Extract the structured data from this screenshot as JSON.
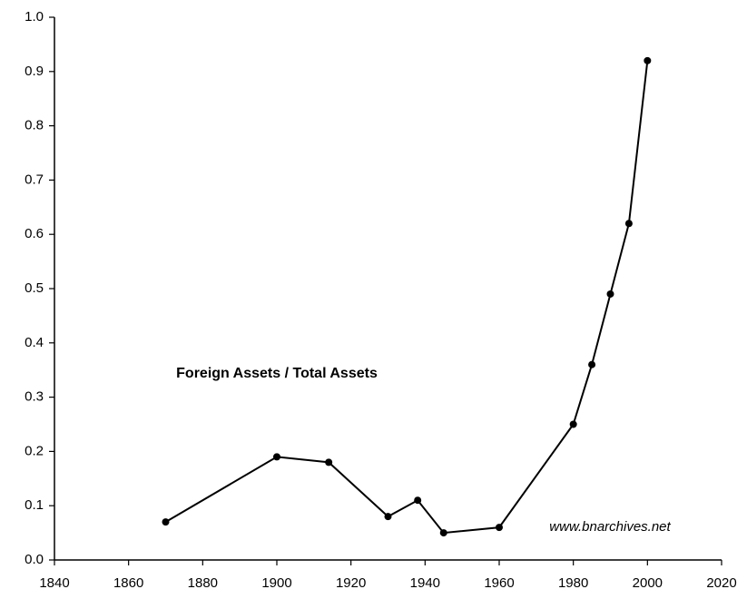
{
  "chart_data": {
    "type": "line",
    "x": [
      1870,
      1900,
      1914,
      1930,
      1938,
      1945,
      1960,
      1980,
      1985,
      1990,
      1995,
      2000
    ],
    "series": [
      {
        "color": "#000000",
        "values": [
          0.07,
          0.19,
          0.18,
          0.08,
          0.11,
          0.05,
          0.06,
          0.25,
          0.36,
          0.49,
          0.62,
          0.92
        ]
      }
    ],
    "xlim": [
      1840,
      2020
    ],
    "xticks": [
      1840,
      1860,
      1880,
      1900,
      1920,
      1940,
      1960,
      1980,
      2000,
      2020
    ],
    "ylim": [
      0,
      1
    ],
    "yticks": [
      {
        "value": 0,
        "label": "0.0"
      },
      0.1,
      0.2,
      0.3,
      0.4,
      0.5,
      0.6,
      0.7,
      0.8,
      0.9,
      {
        "value": 1,
        "label": "1.0"
      }
    ],
    "annotations": [
      "Foreign Assets / Total Assets",
      "www.bnarchives.net"
    ],
    "grid": false
  }
}
